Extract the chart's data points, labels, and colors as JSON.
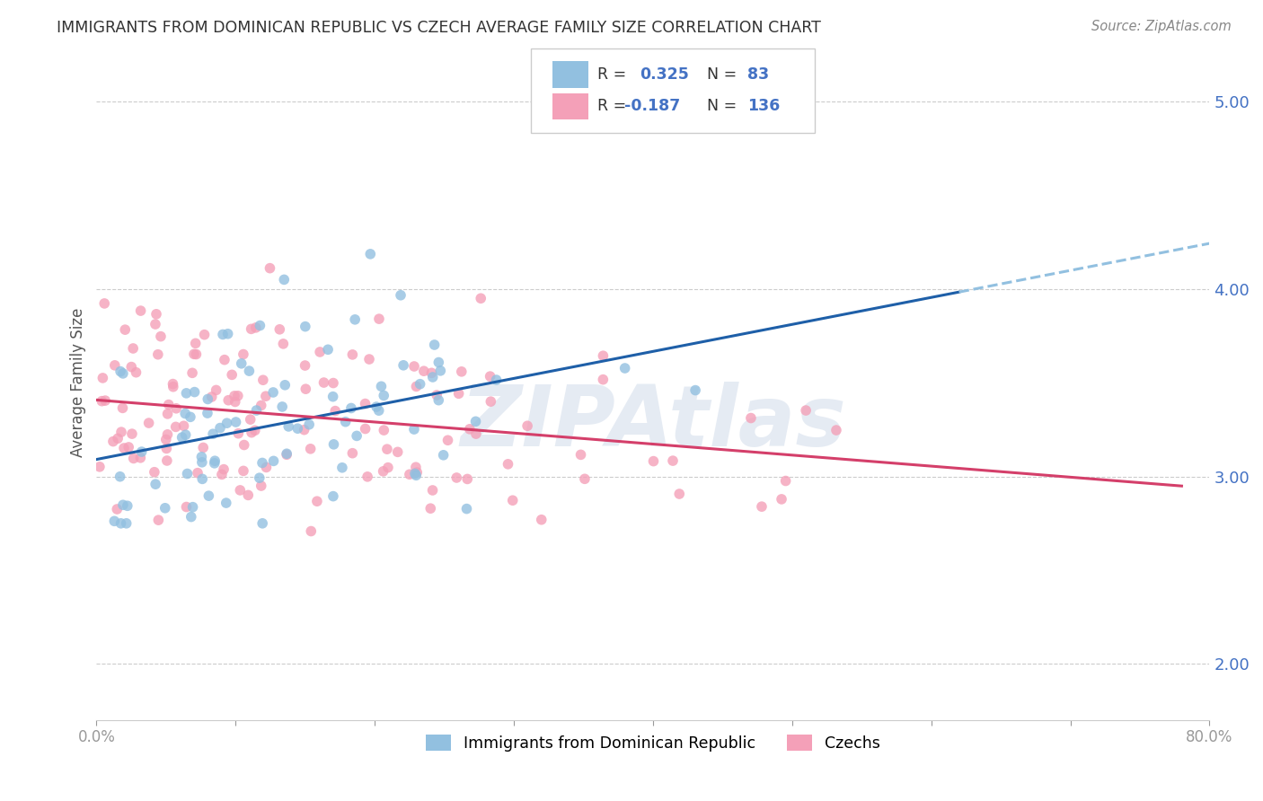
{
  "title": "IMMIGRANTS FROM DOMINICAN REPUBLIC VS CZECH AVERAGE FAMILY SIZE CORRELATION CHART",
  "source": "Source: ZipAtlas.com",
  "ylabel": "Average Family Size",
  "watermark": "ZIPAtlas",
  "xlim": [
    0.0,
    0.8
  ],
  "ylim": [
    1.7,
    5.3
  ],
  "yticks": [
    2.0,
    3.0,
    4.0,
    5.0
  ],
  "xticks": [
    0.0,
    0.1,
    0.2,
    0.3,
    0.4,
    0.5,
    0.6,
    0.7,
    0.8
  ],
  "xtick_labels": [
    "0.0%",
    "",
    "",
    "",
    "",
    "",
    "",
    "",
    "80.0%"
  ],
  "blue_R": 0.325,
  "blue_N": 83,
  "pink_R": -0.187,
  "pink_N": 136,
  "blue_color": "#92c0e0",
  "pink_color": "#f4a0b8",
  "blue_line_color": "#1e5fa8",
  "pink_line_color": "#d43f6a",
  "blue_dashed_color": "#92c0e0",
  "title_color": "#333333",
  "axis_color": "#4472c4",
  "grid_color": "#cccccc",
  "background_color": "#ffffff",
  "legend_text_color": "#4472c4"
}
